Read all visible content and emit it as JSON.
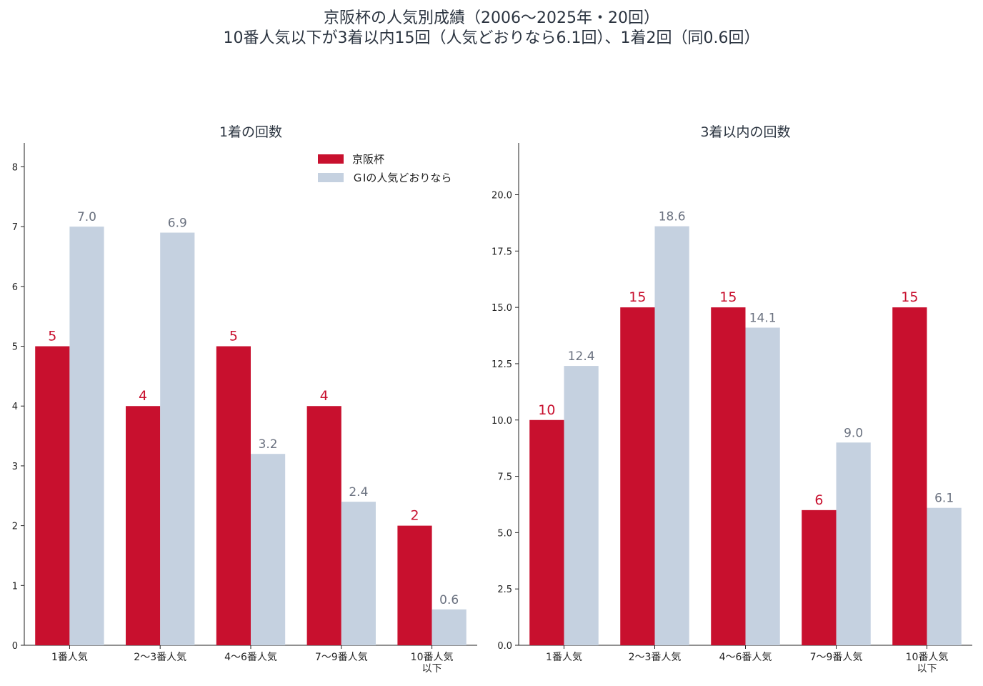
{
  "title_lines": [
    "京阪杯の人気別成績（2006〜2025年・20回）",
    "10番人気以下が3着以内15回（人気どおりなら6.1回）、1着2回（同0.6回）"
  ],
  "colors": {
    "series_a": "#c8102e",
    "series_b": "#c5d1e0",
    "label_b": "#6b7280"
  },
  "chart_data": [
    {
      "type": "bar",
      "title": "1着の回数",
      "categories": [
        [
          "1番人気"
        ],
        [
          "2〜3番人気"
        ],
        [
          "4〜6番人気"
        ],
        [
          "7〜9番人気"
        ],
        [
          "10番人気",
          "以下"
        ]
      ],
      "series": [
        {
          "name": "京阪杯",
          "values": [
            5,
            4,
            5,
            4,
            2
          ],
          "labels": [
            "5",
            "4",
            "5",
            "4",
            "2"
          ]
        },
        {
          "name": "ＧⅠの人気どおりなら",
          "values": [
            7.0,
            6.9,
            3.2,
            2.4,
            0.6
          ],
          "labels": [
            "7.0",
            "6.9",
            "3.2",
            "2.4",
            "0.6"
          ]
        }
      ],
      "ylim": [
        0,
        8.4
      ],
      "yticks": [
        0,
        1,
        2,
        3,
        4,
        5,
        6,
        7,
        8
      ],
      "ytick_labels": [
        "0",
        "1",
        "2",
        "3",
        "4",
        "5",
        "6",
        "7",
        "8"
      ],
      "legend": "top-right",
      "grid": false
    },
    {
      "type": "bar",
      "title": "3着以内の回数",
      "categories": [
        [
          "1番人気"
        ],
        [
          "2〜3番人気"
        ],
        [
          "4〜6番人気"
        ],
        [
          "7〜9番人気"
        ],
        [
          "10番人気",
          "以下"
        ]
      ],
      "series": [
        {
          "name": "京阪杯",
          "values": [
            10,
            15,
            15,
            6,
            15
          ],
          "labels": [
            "10",
            "15",
            "15",
            "6",
            "15"
          ]
        },
        {
          "name": "ＧⅠの人気どおりなら",
          "values": [
            12.4,
            18.6,
            14.1,
            9.0,
            6.1
          ],
          "labels": [
            "12.4",
            "18.6",
            "14.1",
            "9.0",
            "6.1"
          ]
        }
      ],
      "ylim": [
        0,
        22.3
      ],
      "yticks": [
        0,
        2.5,
        5,
        7.5,
        10,
        12.5,
        15,
        17.5,
        20
      ],
      "ytick_labels": [
        "0.0",
        "2.5",
        "5.0",
        "7.5",
        "10.0",
        "12.5",
        "15.0",
        "17.5",
        "20.0"
      ],
      "legend": "none",
      "grid": false
    }
  ]
}
